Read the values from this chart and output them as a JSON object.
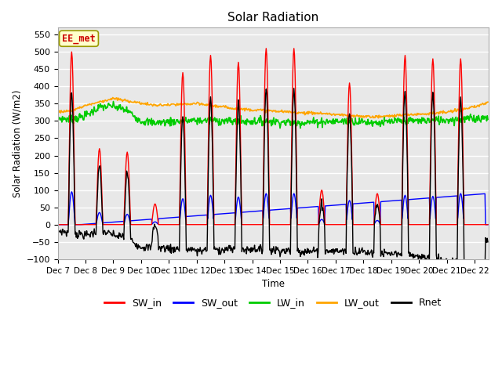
{
  "title": "Solar Radiation",
  "ylabel": "Solar Radiation (W/m2)",
  "xlabel": "Time",
  "ylim": [
    -100,
    570
  ],
  "yticks": [
    -100,
    -50,
    0,
    50,
    100,
    150,
    200,
    250,
    300,
    350,
    400,
    450,
    500,
    550
  ],
  "xlim": [
    0,
    15.5
  ],
  "xtick_labels": [
    "Dec 7",
    "Dec 8",
    "Dec 9",
    "Dec 10",
    "Dec 11",
    "Dec 12",
    "Dec 13",
    "Dec 14",
    "Dec 15",
    "Dec 16",
    "Dec 17",
    "Dec 18",
    "Dec 19",
    "Dec 20",
    "Dec 21",
    "Dec 22"
  ],
  "line_colors": {
    "SW_in": "#ff0000",
    "SW_out": "#0000ff",
    "LW_in": "#00cc00",
    "LW_out": "#ffa500",
    "Rnet": "#000000"
  },
  "legend_label": "EE_met",
  "bg_color": "#e8e8e8",
  "grid_color": "#ffffff",
  "day_peaks_SWin": [
    500,
    220,
    210,
    60,
    440,
    490,
    470,
    510,
    510,
    100,
    410,
    90,
    490,
    480,
    480
  ],
  "day_peaks_SWout": [
    95,
    35,
    30,
    8,
    75,
    85,
    80,
    90,
    90,
    15,
    70,
    12,
    85,
    82,
    90
  ]
}
